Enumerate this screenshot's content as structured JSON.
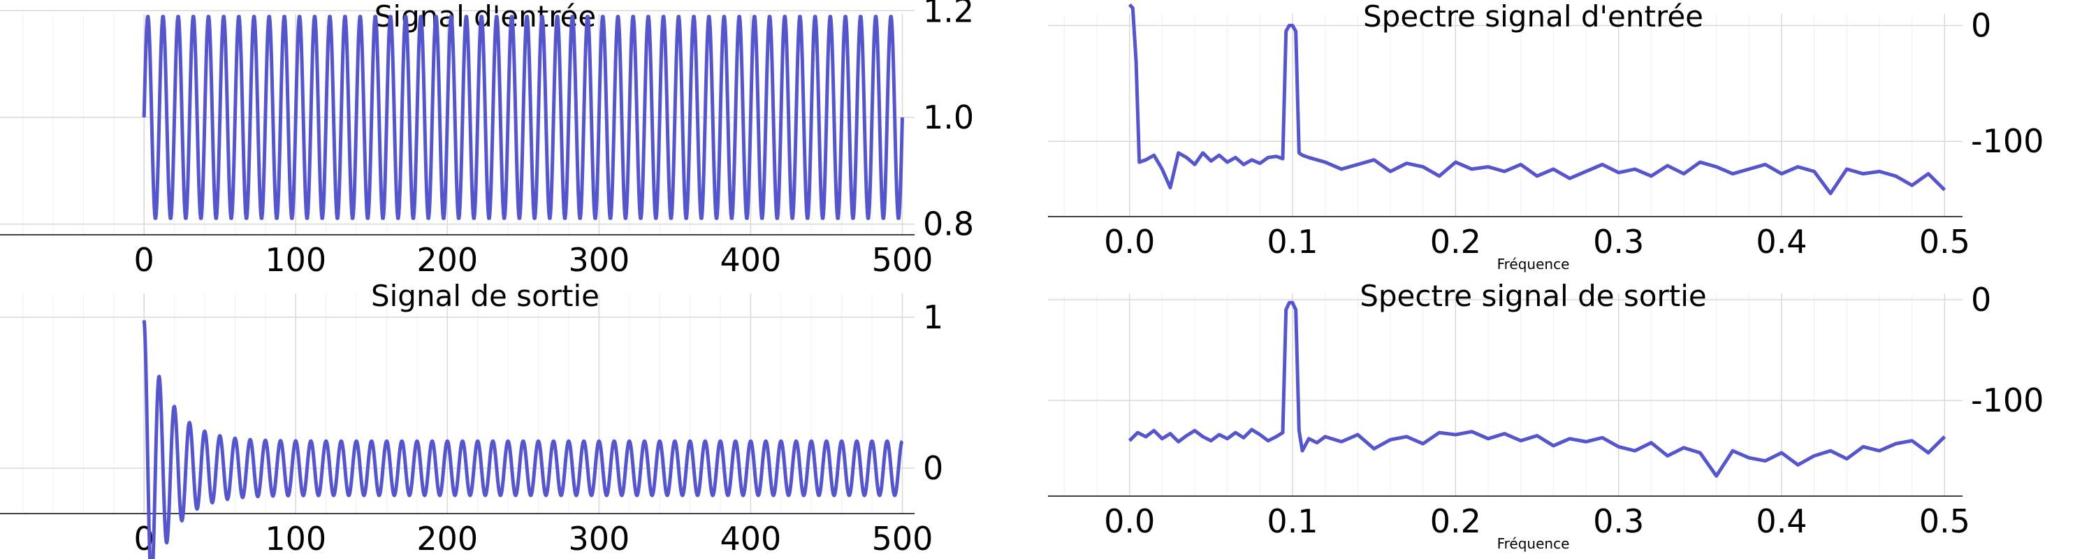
{
  "style": {
    "line_color": "#5555cc",
    "grid_color": "#d9d9d9",
    "minor_grid_color": "#f0f0f0"
  },
  "chart_data": [
    {
      "type": "line",
      "title": "Signal d'entrée",
      "xlabel": "",
      "ylabel": "",
      "xlim": [
        -95,
        550
      ],
      "ylim": [
        0.78,
        1.22
      ],
      "xticks": [
        0,
        100,
        200,
        300,
        400,
        500
      ],
      "xtick_labels": [
        "0",
        "100",
        "200",
        "300",
        "400",
        "500"
      ],
      "yticks": [
        0.8,
        1.0,
        1.2
      ],
      "ytick_labels": [
        "0.8",
        "1.0",
        "1.2"
      ],
      "grid": true,
      "y_axis_side": "right",
      "signal": {
        "kind": "sine",
        "x_start": 0,
        "x_end": 500,
        "offset": 1.0,
        "amplitude": 0.19,
        "period": 10,
        "phase_deg": 0
      }
    },
    {
      "type": "line",
      "title": "Spectre signal d'entrée",
      "xlabel": "Fréquence",
      "ylabel": "",
      "xlim": [
        -0.05,
        0.55
      ],
      "ylim": [
        -165,
        22
      ],
      "xticks": [
        0.0,
        0.1,
        0.2,
        0.3,
        0.4,
        0.5
      ],
      "xtick_labels": [
        "0.0",
        "0.1",
        "0.2",
        "0.3",
        "0.4",
        "0.5"
      ],
      "yticks": [
        0,
        -100
      ],
      "ytick_labels": [
        "0",
        "-100"
      ],
      "grid": true,
      "y_axis_side": "right",
      "series": [
        {
          "x": [
            0.0,
            0.002,
            0.004,
            0.006,
            0.01,
            0.015,
            0.02,
            0.025,
            0.03,
            0.035,
            0.04,
            0.045,
            0.05,
            0.055,
            0.06,
            0.065,
            0.07,
            0.075,
            0.08,
            0.085,
            0.09,
            0.094,
            0.096,
            0.098,
            0.1,
            0.102,
            0.104,
            0.106,
            0.11,
            0.12,
            0.13,
            0.14,
            0.15,
            0.16,
            0.17,
            0.18,
            0.19,
            0.2,
            0.21,
            0.22,
            0.23,
            0.24,
            0.25,
            0.26,
            0.27,
            0.28,
            0.29,
            0.3,
            0.31,
            0.32,
            0.33,
            0.34,
            0.35,
            0.36,
            0.37,
            0.38,
            0.39,
            0.4,
            0.41,
            0.42,
            0.43,
            0.44,
            0.45,
            0.46,
            0.47,
            0.48,
            0.49,
            0.5
          ],
          "y": [
            18,
            15,
            -30,
            -118,
            -116,
            -112,
            -124,
            -140,
            -110,
            -114,
            -120,
            -110,
            -117,
            -112,
            -118,
            -114,
            -120,
            -116,
            -119,
            -114,
            -113,
            -115,
            -5,
            0,
            0,
            -5,
            -110,
            -112,
            -114,
            -118,
            -124,
            -120,
            -116,
            -126,
            -119,
            -122,
            -130,
            -118,
            -124,
            -122,
            -126,
            -120,
            -130,
            -124,
            -132,
            -126,
            -120,
            -127,
            -124,
            -130,
            -121,
            -128,
            -118,
            -122,
            -128,
            -124,
            -120,
            -128,
            -122,
            -126,
            -145,
            -124,
            -128,
            -126,
            -130,
            -138,
            -128,
            -142
          ]
        }
      ]
    },
    {
      "type": "line",
      "title": "Signal de sortie",
      "xlabel": "",
      "ylabel": "",
      "xlim": [
        -95,
        550
      ],
      "ylim": [
        -0.3,
        1.25
      ],
      "xticks": [
        0,
        100,
        200,
        300,
        400,
        500
      ],
      "xtick_labels": [
        "0",
        "100",
        "200",
        "300",
        "400",
        "500"
      ],
      "yticks": [
        0,
        1
      ],
      "ytick_labels": [
        "0",
        "1"
      ],
      "grid": true,
      "y_axis_side": "right",
      "signal": {
        "kind": "damped_sine",
        "x_start": 0,
        "x_end": 500,
        "offset": 0.0,
        "amplitude": 0.18,
        "period": 10,
        "transient_amplitude": 0.8,
        "transient_decay": 16
      }
    },
    {
      "type": "line",
      "title": "Spectre signal de sortie",
      "xlabel": "Fréquence",
      "ylabel": "",
      "xlim": [
        -0.05,
        0.55
      ],
      "ylim": [
        -195,
        20
      ],
      "xticks": [
        0.0,
        0.1,
        0.2,
        0.3,
        0.4,
        0.5
      ],
      "xtick_labels": [
        "0.0",
        "0.1",
        "0.2",
        "0.3",
        "0.4",
        "0.5"
      ],
      "yticks": [
        0,
        -100
      ],
      "ytick_labels": [
        "0",
        "-100"
      ],
      "grid": true,
      "y_axis_side": "right",
      "series": [
        {
          "x": [
            0.0,
            0.005,
            0.01,
            0.015,
            0.02,
            0.025,
            0.03,
            0.035,
            0.04,
            0.045,
            0.05,
            0.055,
            0.06,
            0.065,
            0.07,
            0.075,
            0.08,
            0.085,
            0.09,
            0.094,
            0.096,
            0.098,
            0.1,
            0.102,
            0.104,
            0.106,
            0.11,
            0.115,
            0.12,
            0.13,
            0.14,
            0.15,
            0.16,
            0.17,
            0.18,
            0.19,
            0.2,
            0.21,
            0.22,
            0.23,
            0.24,
            0.25,
            0.26,
            0.27,
            0.28,
            0.29,
            0.3,
            0.31,
            0.32,
            0.33,
            0.34,
            0.35,
            0.36,
            0.37,
            0.38,
            0.39,
            0.4,
            0.41,
            0.42,
            0.43,
            0.44,
            0.45,
            0.46,
            0.47,
            0.48,
            0.49,
            0.5
          ],
          "y": [
            -140,
            -132,
            -136,
            -130,
            -138,
            -133,
            -141,
            -135,
            -130,
            -136,
            -140,
            -134,
            -138,
            -132,
            -137,
            -129,
            -134,
            -140,
            -136,
            -132,
            -10,
            -3,
            -3,
            -10,
            -130,
            -150,
            -138,
            -142,
            -136,
            -141,
            -134,
            -148,
            -139,
            -136,
            -143,
            -132,
            -134,
            -131,
            -138,
            -133,
            -140,
            -135,
            -145,
            -138,
            -141,
            -137,
            -146,
            -150,
            -142,
            -155,
            -147,
            -152,
            -175,
            -150,
            -157,
            -160,
            -152,
            -164,
            -155,
            -150,
            -158,
            -146,
            -150,
            -143,
            -140,
            -152,
            -136
          ]
        }
      ]
    }
  ]
}
